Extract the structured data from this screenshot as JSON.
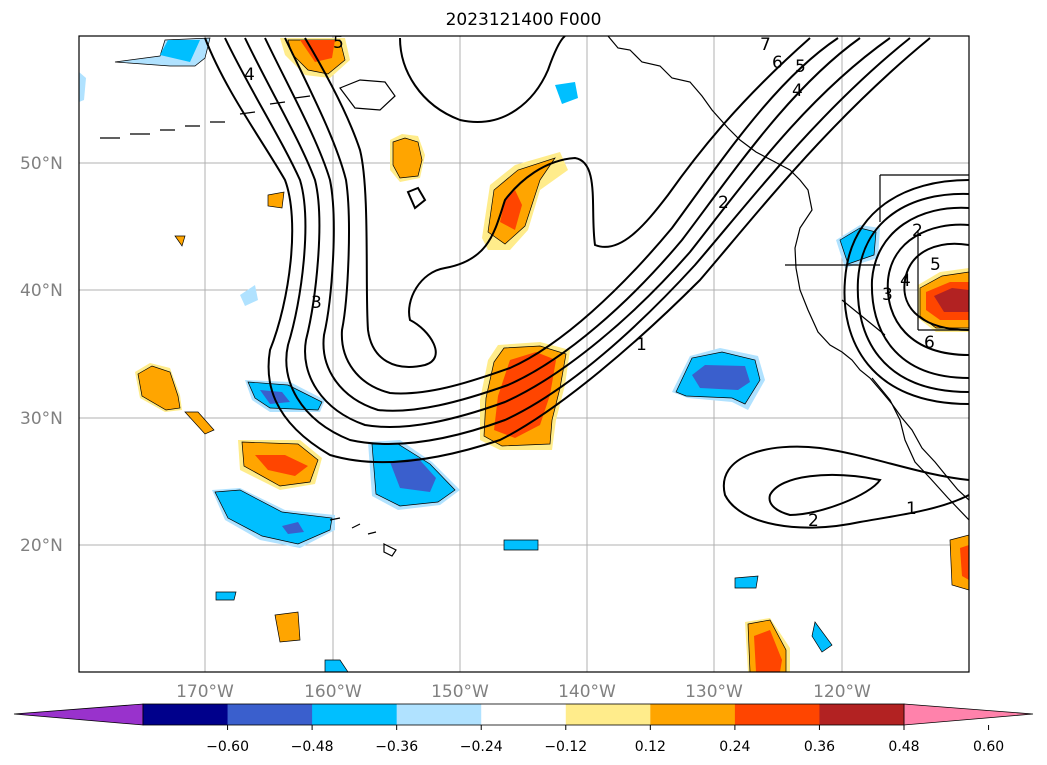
{
  "title": "2023121400 F000",
  "latitude_labels": [
    "50°N",
    "40°N",
    "30°N",
    "20°N"
  ],
  "longitude_labels": [
    "170°W",
    "160°W",
    "150°W",
    "140°W",
    "130°W",
    "120°W"
  ],
  "colorbar": {
    "tick_labels": [
      "−0.60",
      "−0.48",
      "−0.36",
      "−0.24",
      "−0.12",
      "0.12",
      "0.24",
      "0.36",
      "0.48",
      "0.60"
    ],
    "colors": [
      "#9932cc",
      "#00008b",
      "#3a5fcd",
      "#00bfff",
      "#b0e2ff",
      "#ffffff",
      "#ffec8b",
      "#ffa500",
      "#ff4500",
      "#b22222",
      "#ff82ab"
    ]
  },
  "contour_labels": [
    "4",
    "5",
    "3",
    "7",
    "6",
    "5",
    "4",
    "2",
    "1",
    "2",
    "1",
    "2",
    "3",
    "4",
    "5",
    "6"
  ]
}
